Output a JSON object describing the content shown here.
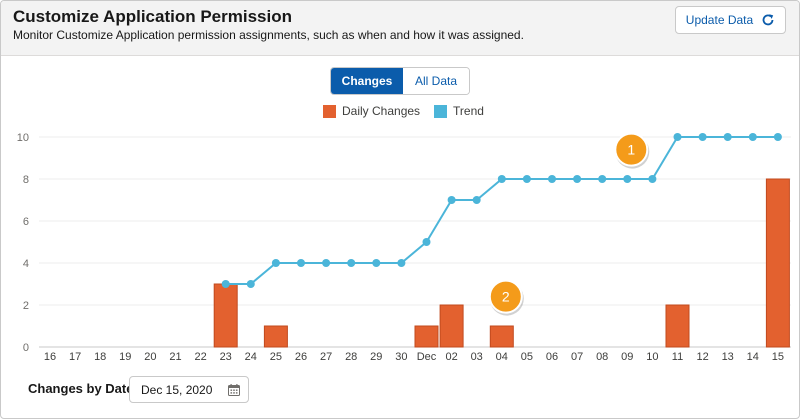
{
  "header": {
    "title": "Customize Application Permission",
    "subtitle": "Monitor Customize Application permission assignments, such as when and how it was assigned.",
    "update_button_label": "Update Data"
  },
  "toggle": {
    "options": [
      "Changes",
      "All Data"
    ],
    "selected": "Changes"
  },
  "legend": {
    "daily_label": "Daily Changes",
    "trend_label": "Trend"
  },
  "colors": {
    "daily": "#e3612f",
    "daily_stroke": "#c14a1e",
    "trend": "#4bb5d9",
    "badge": "#f49b1a",
    "accent": "#0b5cab"
  },
  "chart_data": {
    "type": "bar",
    "categories": [
      "16",
      "17",
      "18",
      "19",
      "20",
      "21",
      "22",
      "23",
      "24",
      "25",
      "26",
      "27",
      "28",
      "29",
      "30",
      "Dec",
      "02",
      "03",
      "04",
      "05",
      "06",
      "07",
      "08",
      "09",
      "10",
      "11",
      "12",
      "13",
      "14",
      "15"
    ],
    "series": [
      {
        "name": "Daily Changes",
        "type": "bar",
        "values": [
          0,
          0,
          0,
          0,
          0,
          0,
          0,
          3,
          0,
          1,
          0,
          0,
          0,
          0,
          0,
          1,
          2,
          0,
          1,
          0,
          0,
          0,
          0,
          0,
          0,
          2,
          0,
          0,
          0,
          8
        ]
      },
      {
        "name": "Trend",
        "type": "line",
        "values": [
          null,
          null,
          null,
          null,
          null,
          null,
          null,
          3,
          3,
          4,
          4,
          4,
          4,
          4,
          4,
          5,
          7,
          7,
          8,
          8,
          8,
          8,
          8,
          8,
          8,
          10,
          10,
          10,
          10,
          10
        ]
      }
    ],
    "ylim": [
      0,
      10
    ],
    "yticks": [
      0,
      2,
      4,
      6,
      8,
      10
    ],
    "grid": true,
    "legend_position": "top-center",
    "annotations": [
      {
        "label": "1",
        "x": "09",
        "y": 9.4
      },
      {
        "label": "2",
        "x": "04",
        "y": 2.4
      }
    ]
  },
  "footer": {
    "label": "Changes by Date",
    "date_value": "Dec 15, 2020"
  }
}
